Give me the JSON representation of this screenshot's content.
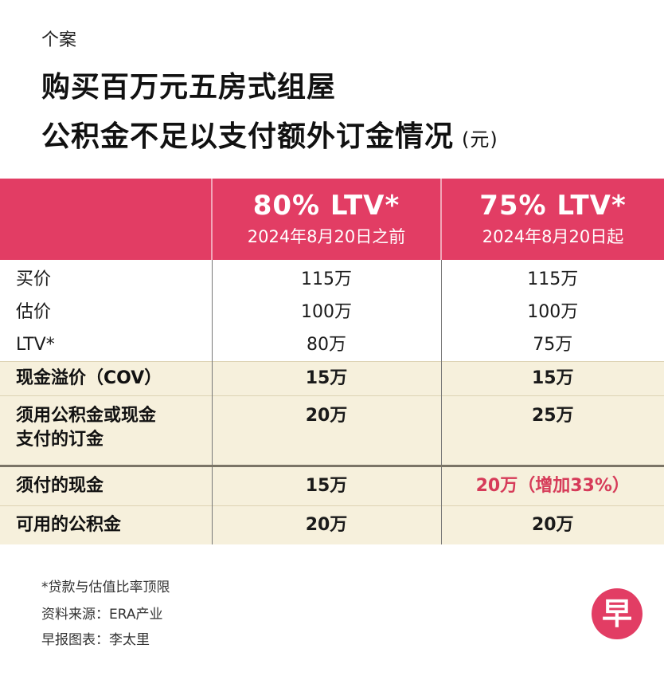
{
  "header": {
    "kicker": "个案",
    "title_line1": "购买百万元五房式组屋",
    "title_line2": "公积金不足以支付额外订金情况",
    "unit": "(元)"
  },
  "columns": [
    {
      "title": "80% LTV*",
      "subtitle": "2024年8月20日之前"
    },
    {
      "title": "75% LTV*",
      "subtitle": "2024年8月20日起"
    }
  ],
  "rows": [
    {
      "label": "买价",
      "values": [
        "115万",
        "115万"
      ]
    },
    {
      "label": "估价",
      "values": [
        "100万",
        "100万"
      ]
    },
    {
      "label": "LTV*",
      "values": [
        "80万",
        "75万"
      ]
    },
    {
      "label": "现金溢价（COV）",
      "values": [
        "15万",
        "15万"
      ]
    },
    {
      "label_line1": "须用公积金或现金",
      "label_line2": "支付的订金",
      "values": [
        "20万",
        "25万"
      ]
    },
    {
      "label": "须付的现金",
      "values": [
        "15万",
        "20万（增加33%）"
      ]
    },
    {
      "label": "可用的公积金",
      "values": [
        "20万",
        "20万"
      ]
    }
  ],
  "footnotes": {
    "ltv_note": "*贷款与估值比率顶限",
    "source": "资料来源：ERA产业",
    "credit": "早报图表：李太里"
  },
  "logo": {
    "text": "早",
    "color": "#e23d64"
  },
  "colors": {
    "header_bg": "#e23d64",
    "highlight_bg": "#f6f0dc",
    "highlight_text": "#d63b59"
  }
}
